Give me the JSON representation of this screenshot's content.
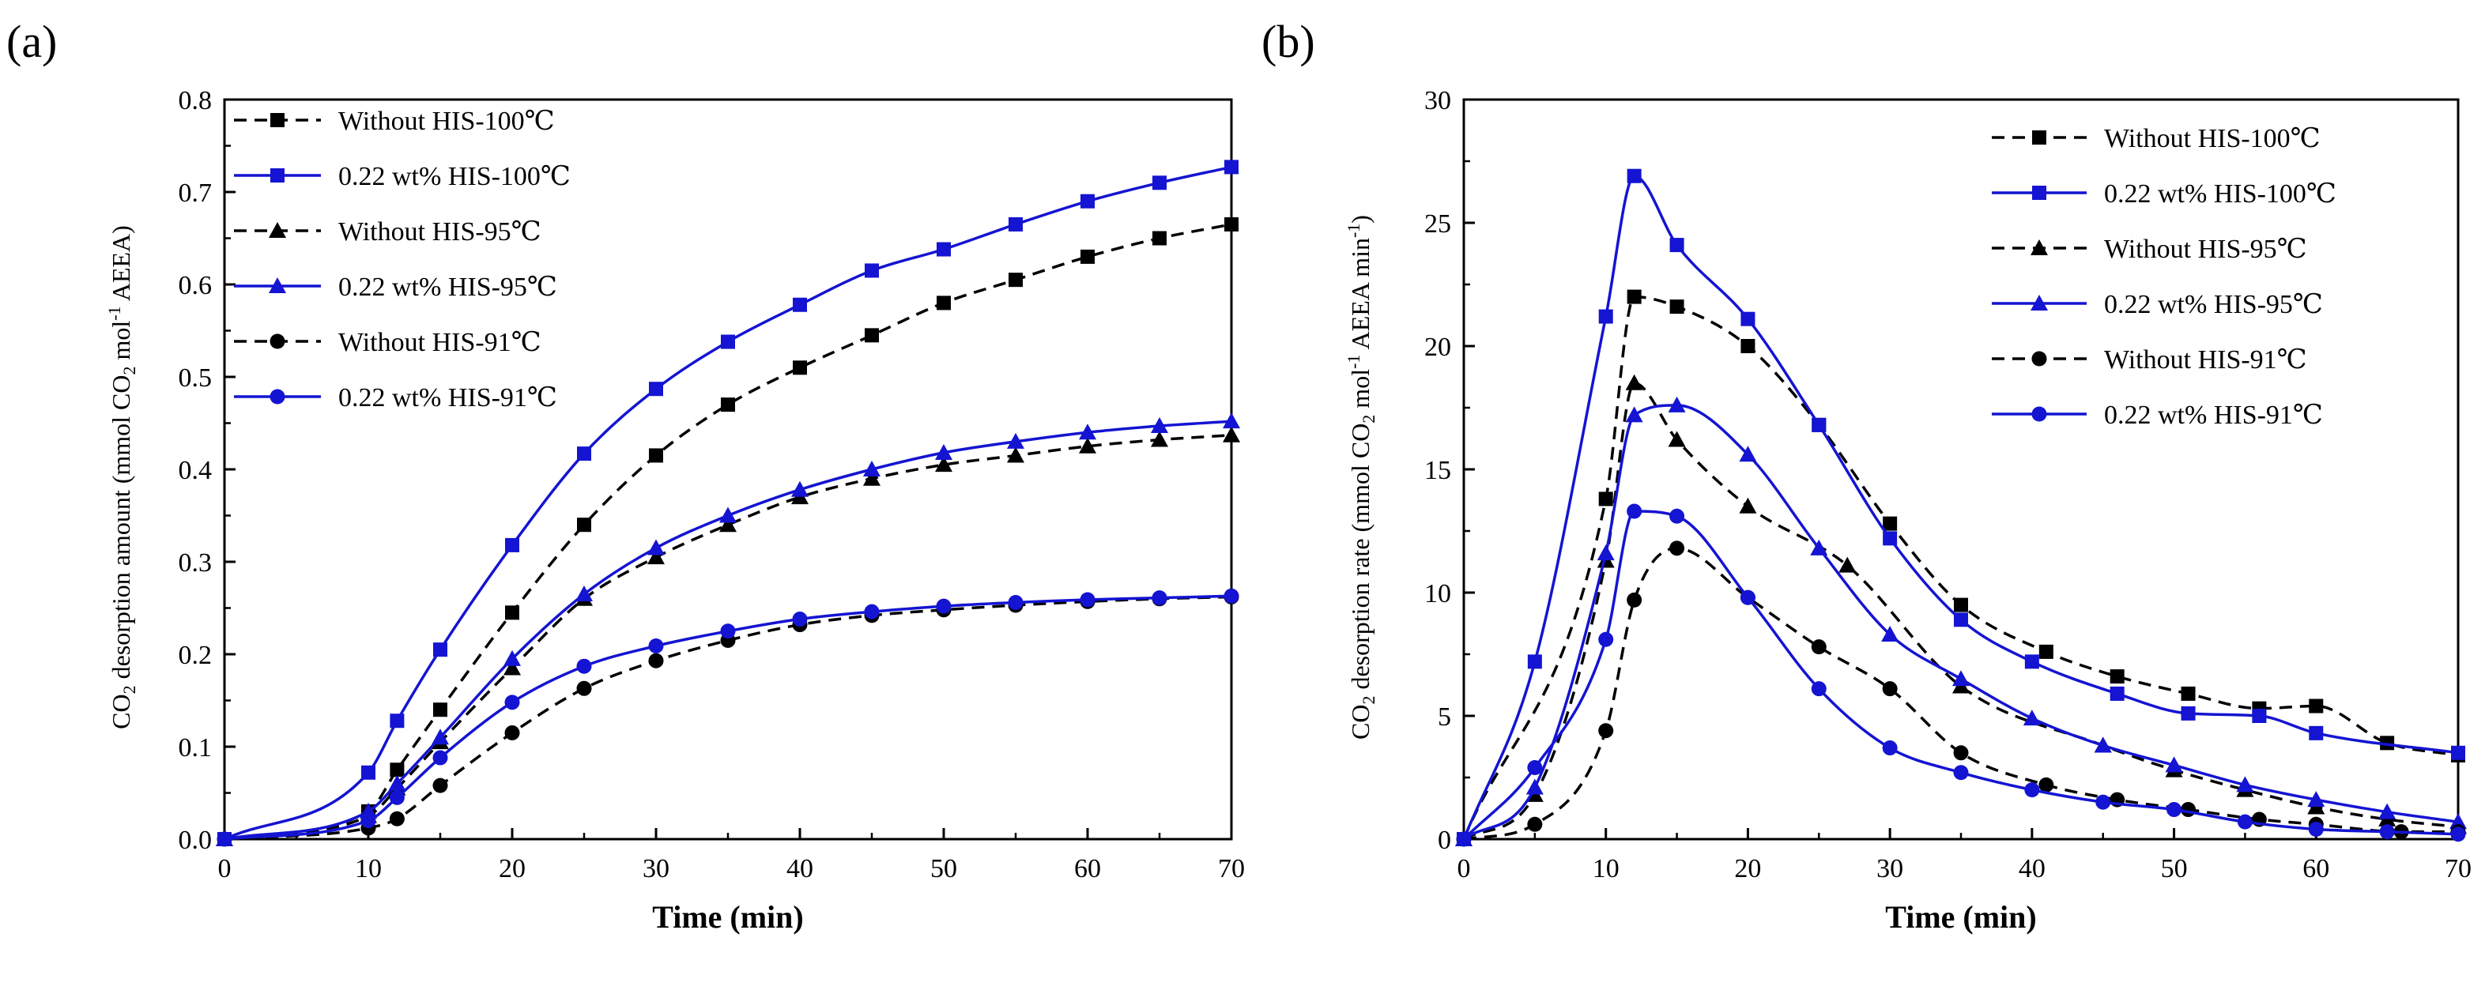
{
  "chart_data": [
    {
      "type": "line",
      "panel_label": "(a)",
      "xlabel": "Time (min)",
      "ylabel": {
        "prefix": "CO",
        "sub": "2",
        "mid": " desorption amount (mmol CO",
        "sub2": "2",
        "mid2": " mol",
        "sup": "-1",
        "suffix": " AEEA)"
      },
      "xlim": [
        0,
        70
      ],
      "ylim": [
        0,
        0.8
      ],
      "xticks": [
        0,
        10,
        20,
        30,
        40,
        50,
        60,
        70
      ],
      "yticks": [
        0.0,
        0.1,
        0.2,
        0.3,
        0.4,
        0.5,
        0.6,
        0.7,
        0.8
      ],
      "ytick_labels": [
        "0.0",
        "0.1",
        "0.2",
        "0.3",
        "0.4",
        "0.5",
        "0.6",
        "0.7",
        "0.8"
      ],
      "legend_position": "top-left",
      "series": [
        {
          "name": "Without HIS-100℃",
          "color": "#000000",
          "dash": true,
          "marker": "square",
          "x": [
            0,
            10,
            12,
            15,
            20,
            25,
            30,
            35,
            40,
            45,
            50,
            55,
            60,
            65,
            70
          ],
          "y": [
            0,
            0.03,
            0.075,
            0.14,
            0.245,
            0.34,
            0.415,
            0.47,
            0.51,
            0.545,
            0.58,
            0.605,
            0.63,
            0.65,
            0.665
          ]
        },
        {
          "name": "0.22 wt% HIS-100℃",
          "color": "#1414d2",
          "dash": false,
          "marker": "square",
          "x": [
            0,
            10,
            12,
            15,
            20,
            25,
            30,
            35,
            40,
            45,
            50,
            55,
            60,
            65,
            70
          ],
          "y": [
            0,
            0.072,
            0.128,
            0.205,
            0.318,
            0.417,
            0.487,
            0.538,
            0.578,
            0.615,
            0.638,
            0.665,
            0.69,
            0.71,
            0.727
          ]
        },
        {
          "name": "Without HIS-95℃",
          "color": "#000000",
          "dash": true,
          "marker": "triangle",
          "x": [
            0,
            10,
            12,
            15,
            20,
            25,
            30,
            35,
            40,
            45,
            50,
            55,
            60,
            65,
            70
          ],
          "y": [
            0,
            0.025,
            0.055,
            0.105,
            0.185,
            0.26,
            0.305,
            0.34,
            0.37,
            0.39,
            0.405,
            0.415,
            0.425,
            0.432,
            0.437
          ]
        },
        {
          "name": "0.22 wt% HIS-95℃",
          "color": "#1414d2",
          "dash": false,
          "marker": "triangle",
          "x": [
            0,
            10,
            12,
            15,
            20,
            25,
            30,
            35,
            40,
            45,
            50,
            55,
            60,
            65,
            70
          ],
          "y": [
            0,
            0.03,
            0.06,
            0.11,
            0.195,
            0.265,
            0.315,
            0.35,
            0.378,
            0.4,
            0.418,
            0.43,
            0.44,
            0.447,
            0.452
          ]
        },
        {
          "name": "Without HIS-91℃",
          "color": "#000000",
          "dash": true,
          "marker": "circle",
          "x": [
            0,
            10,
            12,
            15,
            20,
            25,
            30,
            35,
            40,
            45,
            50,
            55,
            60,
            65,
            70
          ],
          "y": [
            0,
            0.012,
            0.022,
            0.058,
            0.115,
            0.163,
            0.193,
            0.215,
            0.232,
            0.242,
            0.248,
            0.253,
            0.257,
            0.26,
            0.262
          ]
        },
        {
          "name": "0.22 wt% HIS-91℃",
          "color": "#1414d2",
          "dash": false,
          "marker": "circle",
          "x": [
            0,
            10,
            12,
            15,
            20,
            25,
            30,
            35,
            40,
            45,
            50,
            55,
            60,
            65,
            70
          ],
          "y": [
            0,
            0.02,
            0.045,
            0.088,
            0.148,
            0.187,
            0.209,
            0.225,
            0.238,
            0.246,
            0.252,
            0.256,
            0.259,
            0.261,
            0.263
          ]
        }
      ]
    },
    {
      "type": "line",
      "panel_label": "(b)",
      "xlabel": "Time (min)",
      "ylabel": {
        "prefix": "CO",
        "sub": "2",
        "mid": " desorption rate (mmol CO",
        "sub2": "2",
        "mid2": " mol",
        "sup": "-1",
        "suffix": " AEEA min",
        "sup2": "-1",
        "suffix2": ")"
      },
      "xlim": [
        0,
        70
      ],
      "ylim": [
        0,
        30
      ],
      "xticks": [
        0,
        10,
        20,
        30,
        40,
        50,
        60,
        70
      ],
      "yticks": [
        0,
        5,
        10,
        15,
        20,
        25,
        30
      ],
      "ytick_labels": [
        "0",
        "5",
        "10",
        "15",
        "20",
        "25",
        "30"
      ],
      "legend_position": "top-right",
      "series": [
        {
          "name": "Without HIS-100℃",
          "color": "#000000",
          "dash": true,
          "marker": "square",
          "x": [
            0,
            10,
            12,
            15,
            20,
            25,
            30,
            35,
            41,
            46,
            51,
            56,
            60,
            65,
            70
          ],
          "y": [
            0,
            13.8,
            22.0,
            21.6,
            20.0,
            16.8,
            12.8,
            9.5,
            7.6,
            6.6,
            5.9,
            5.3,
            5.4,
            3.9,
            3.4
          ]
        },
        {
          "name": "0.22 wt% HIS-100℃",
          "color": "#1414d2",
          "dash": false,
          "marker": "square",
          "x": [
            0,
            5,
            10,
            12,
            15,
            20,
            25,
            30,
            35,
            40,
            46,
            51,
            56,
            60,
            70
          ],
          "y": [
            0,
            7.2,
            21.2,
            26.9,
            24.1,
            21.1,
            16.8,
            12.2,
            8.9,
            7.2,
            5.9,
            5.1,
            5.0,
            4.3,
            3.5
          ]
        },
        {
          "name": "Without HIS-95℃",
          "color": "#000000",
          "dash": true,
          "marker": "triangle",
          "x": [
            0,
            5,
            10,
            12,
            15,
            20,
            27,
            35,
            45,
            50,
            55,
            60,
            65,
            70
          ],
          "y": [
            0,
            1.8,
            11.3,
            18.5,
            16.2,
            13.5,
            11.1,
            6.2,
            3.8,
            2.8,
            2.0,
            1.3,
            0.8,
            0.5
          ]
        },
        {
          "name": "0.22 wt% HIS-95℃",
          "color": "#1414d2",
          "dash": false,
          "marker": "triangle",
          "x": [
            0,
            5,
            10,
            12,
            15,
            20,
            25,
            30,
            35,
            40,
            45,
            50,
            55,
            60,
            65,
            70
          ],
          "y": [
            0,
            2.1,
            11.6,
            17.2,
            17.6,
            15.6,
            11.8,
            8.3,
            6.5,
            4.9,
            3.8,
            3.0,
            2.2,
            1.6,
            1.1,
            0.7
          ]
        },
        {
          "name": "Without HIS-91℃",
          "color": "#000000",
          "dash": true,
          "marker": "circle",
          "x": [
            0,
            5,
            10,
            12,
            15,
            20,
            25,
            30,
            35,
            41,
            46,
            51,
            56,
            60,
            66,
            70
          ],
          "y": [
            0,
            0.6,
            4.4,
            9.7,
            11.8,
            9.8,
            7.8,
            6.1,
            3.5,
            2.2,
            1.6,
            1.2,
            0.8,
            0.6,
            0.3,
            0.3
          ]
        },
        {
          "name": "0.22 wt% HIS-91℃",
          "color": "#1414d2",
          "dash": false,
          "marker": "circle",
          "x": [
            0,
            5,
            10,
            12,
            15,
            20,
            25,
            30,
            35,
            40,
            45,
            50,
            55,
            60,
            65,
            70
          ],
          "y": [
            0,
            2.9,
            8.1,
            13.3,
            13.1,
            9.8,
            6.1,
            3.7,
            2.7,
            2.0,
            1.5,
            1.2,
            0.7,
            0.4,
            0.3,
            0.2
          ]
        }
      ]
    }
  ]
}
